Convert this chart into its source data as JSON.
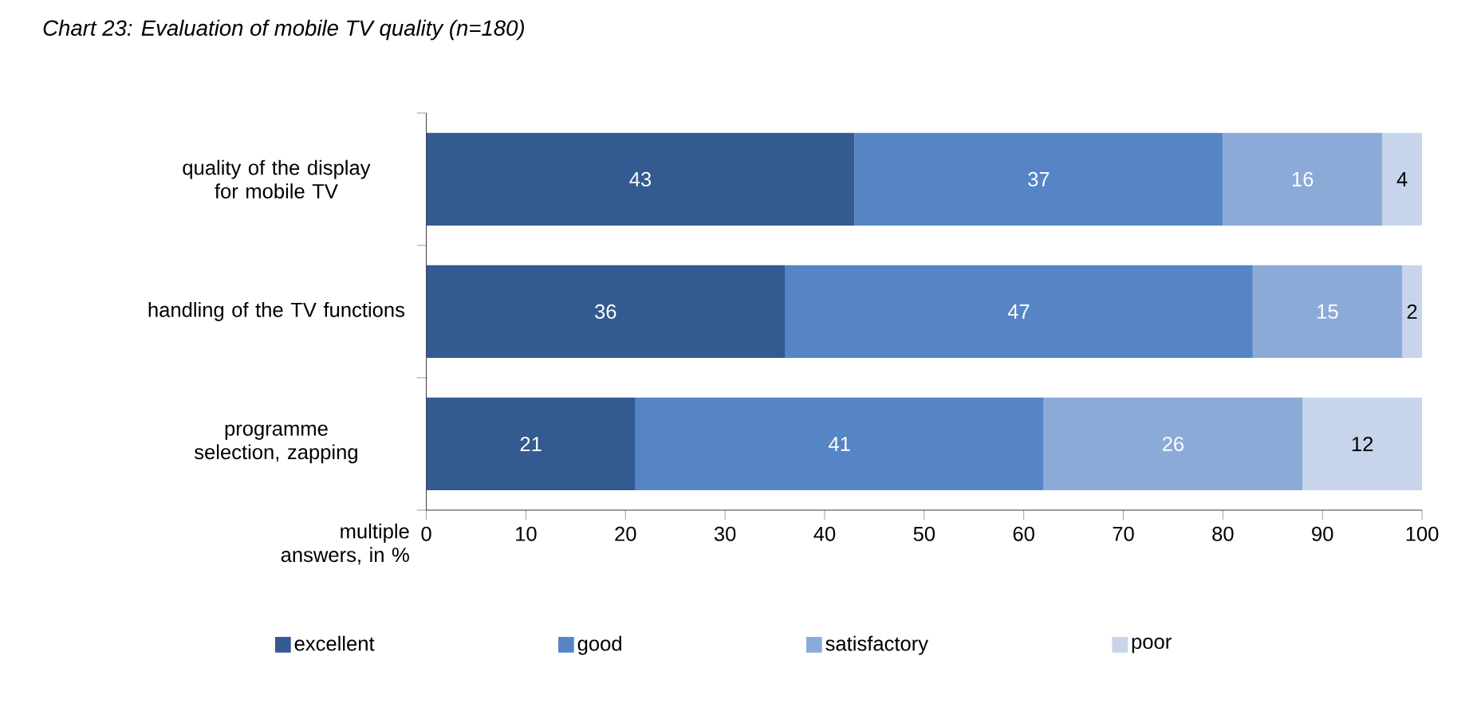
{
  "chart_data": {
    "type": "bar",
    "orientation": "horizontal",
    "stacked": true,
    "title": "Chart 23: Evaluation of mobile TV quality (n=180)",
    "xlabel": "multiple answers, in %",
    "categories": [
      "quality of the display for mobile TV",
      "handling of the TV functions",
      "programme selection, zapping"
    ],
    "series": [
      {
        "name": "excellent",
        "color": "#335a91",
        "values": [
          43,
          36,
          21
        ]
      },
      {
        "name": "good",
        "color": "#5585c5",
        "values": [
          37,
          47,
          41
        ]
      },
      {
        "name": "satisfactory",
        "color": "#8caad8",
        "values": [
          16,
          15,
          26
        ]
      },
      {
        "name": "poor",
        "color": "#c6d5ec",
        "values": [
          4,
          2,
          12
        ]
      }
    ],
    "xlim": [
      0,
      100
    ],
    "xticks": [
      0,
      10,
      20,
      30,
      40,
      50,
      60,
      70,
      80,
      90,
      100
    ],
    "data_labels": true,
    "legend": "bottom",
    "grid": false
  }
}
